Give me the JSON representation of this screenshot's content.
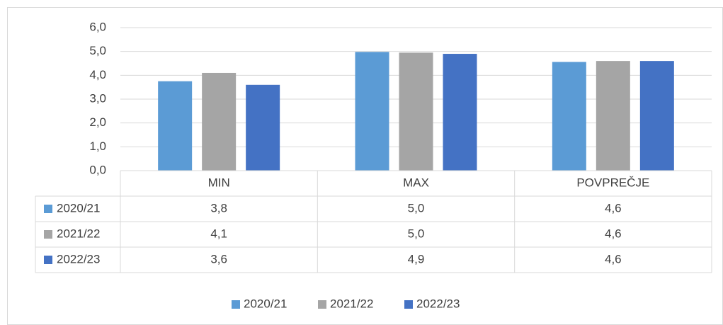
{
  "chart_data": {
    "type": "bar",
    "categories": [
      "MIN",
      "MAX",
      "POVPREČJE"
    ],
    "series": [
      {
        "name": "2020/21",
        "color": "#5b9bd5",
        "values": [
          3.75,
          4.98,
          4.56
        ],
        "value_labels": [
          "3,8",
          "5,0",
          "4,6"
        ]
      },
      {
        "name": "2021/22",
        "color": "#a5a5a5",
        "values": [
          4.1,
          4.95,
          4.6
        ],
        "value_labels": [
          "4,1",
          "5,0",
          "4,6"
        ]
      },
      {
        "name": "2022/23",
        "color": "#4472c4",
        "values": [
          3.6,
          4.9,
          4.6
        ],
        "value_labels": [
          "3,6",
          "4,9",
          "4,6"
        ]
      }
    ],
    "ylim": [
      0,
      6
    ],
    "yticks": [
      {
        "value": 0,
        "label": "0,0"
      },
      {
        "value": 1,
        "label": "1,0"
      },
      {
        "value": 2,
        "label": "2,0"
      },
      {
        "value": 3,
        "label": "3,0"
      },
      {
        "value": 4,
        "label": "4,0"
      },
      {
        "value": 5,
        "label": "5,0"
      },
      {
        "value": 6,
        "label": "6,0"
      }
    ],
    "grid": true,
    "data_table": true,
    "legend": "bottom"
  }
}
